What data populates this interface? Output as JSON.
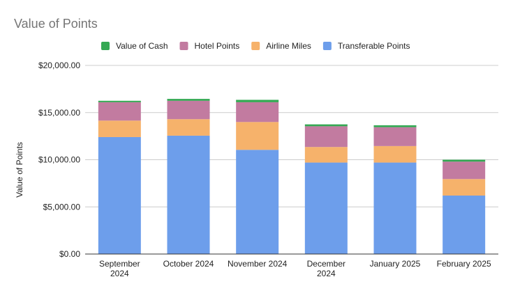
{
  "chart_data": {
    "type": "bar",
    "stacked": true,
    "title": "Value of Points",
    "xlabel": "",
    "ylabel": "Value of Points",
    "ylim": [
      0,
      20000
    ],
    "y_ticks": [
      0,
      5000,
      10000,
      15000,
      20000
    ],
    "y_tick_labels": [
      "$0.00",
      "$5,000.00",
      "$10,000.00",
      "$15,000.00",
      "$20,000.00"
    ],
    "categories": [
      "September 2024",
      "October 2024",
      "November 2024",
      "December 2024",
      "January 2025",
      "February 2025"
    ],
    "category_lines": [
      [
        "September",
        "2024"
      ],
      [
        "October 2024"
      ],
      [
        "November 2024"
      ],
      [
        "December",
        "2024"
      ],
      [
        "January 2025"
      ],
      [
        "February 2025"
      ]
    ],
    "series": [
      {
        "name": "Transferable Points",
        "color": "#6d9eeb",
        "values": [
          12400,
          12550,
          11050,
          9700,
          9700,
          6200
        ]
      },
      {
        "name": "Airline Miles",
        "color": "#f6b26b",
        "values": [
          1750,
          1750,
          2950,
          1650,
          1750,
          1750
        ]
      },
      {
        "name": "Hotel Points",
        "color": "#c27ba0",
        "values": [
          1950,
          1950,
          2100,
          2200,
          2000,
          1850
        ]
      },
      {
        "name": "Value of Cash",
        "color": "#34a853",
        "values": [
          150,
          200,
          250,
          200,
          200,
          200
        ]
      }
    ],
    "legend_order": [
      "Value of Cash",
      "Hotel Points",
      "Airline Miles",
      "Transferable Points"
    ],
    "legend_position": "top",
    "grid": true
  }
}
